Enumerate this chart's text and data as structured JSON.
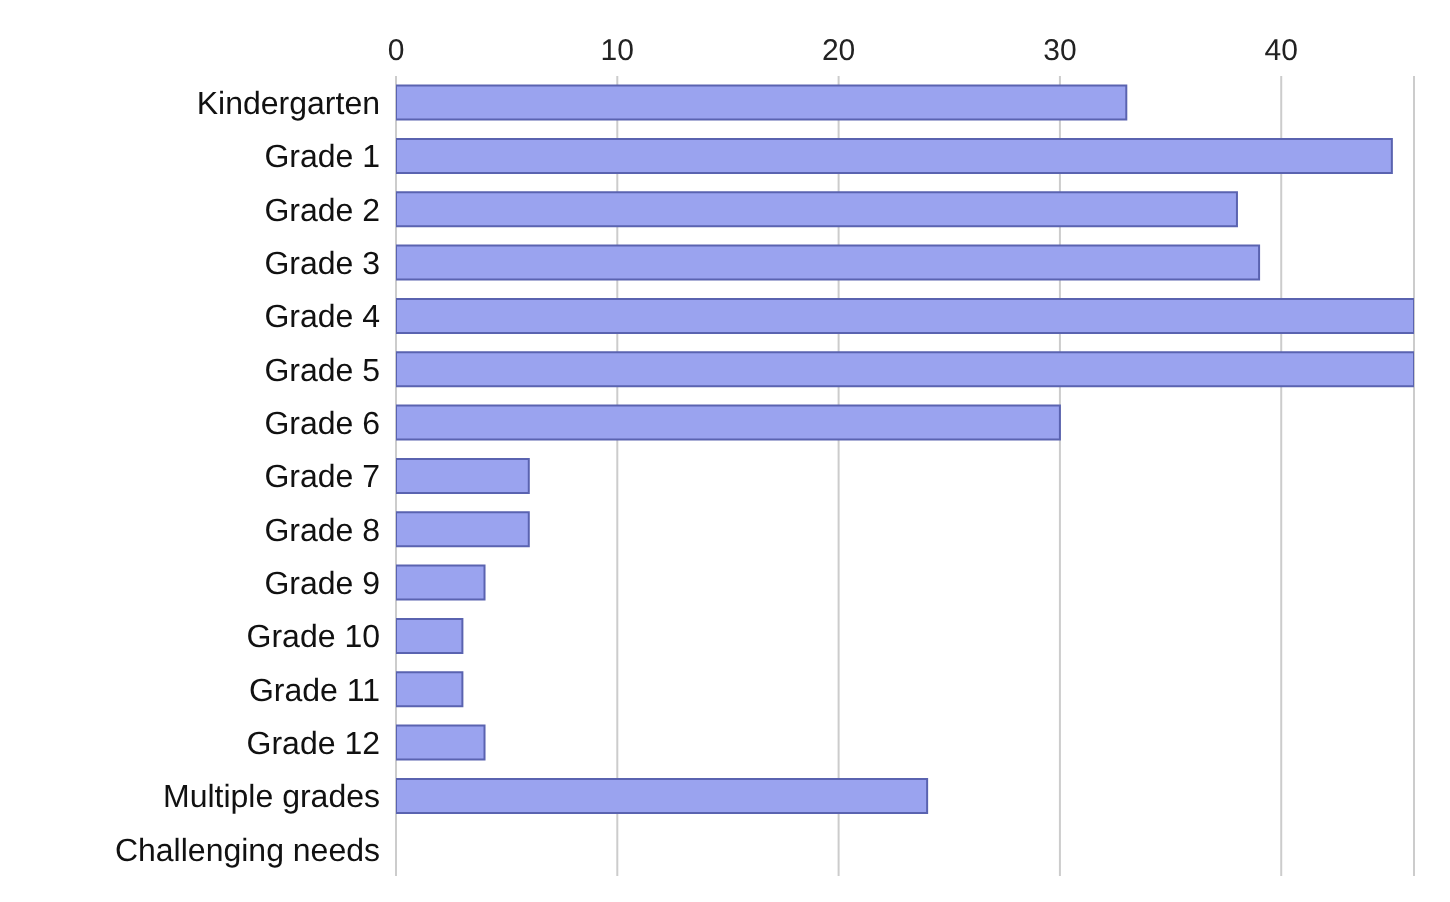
{
  "chart_data": {
    "type": "bar",
    "orientation": "horizontal",
    "categories": [
      "Kindergarten",
      "Grade 1",
      "Grade 2",
      "Grade 3",
      "Grade 4",
      "Grade 5",
      "Grade 6",
      "Grade 7",
      "Grade 8",
      "Grade 9",
      "Grade 10",
      "Grade 11",
      "Grade 12",
      "Multiple grades",
      "Challenging needs"
    ],
    "values": [
      33,
      45,
      38,
      39,
      46,
      46,
      30,
      6,
      6,
      4,
      3,
      3,
      4,
      24,
      null
    ],
    "color": "#9aa3ef",
    "xlim": [
      0,
      46
    ],
    "xticks": [
      0,
      10,
      20,
      30,
      40
    ],
    "grid": "x"
  }
}
